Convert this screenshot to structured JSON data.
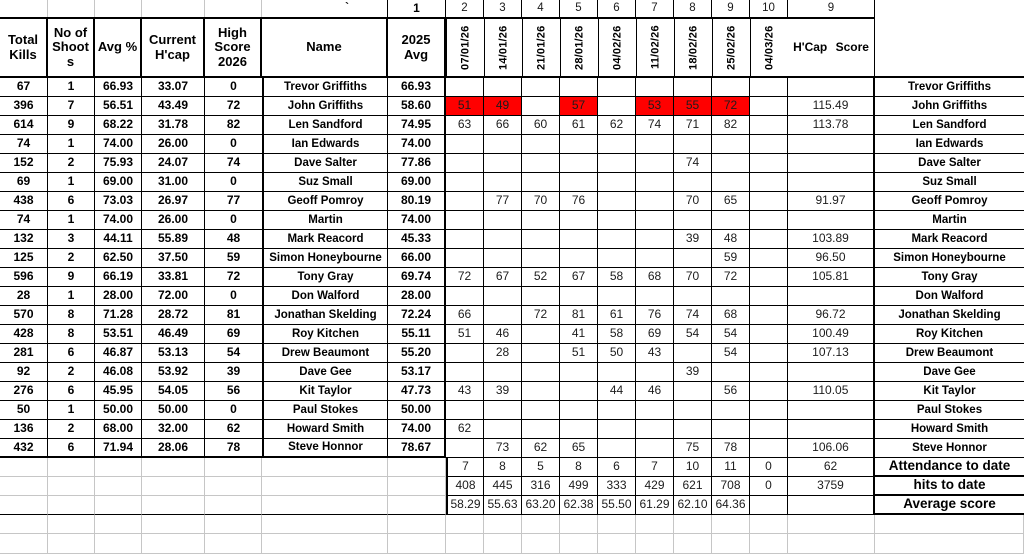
{
  "sheet": {
    "tick": "`",
    "number_row": {
      "avg2025": "1",
      "dates": [
        "2",
        "3",
        "4",
        "5",
        "6",
        "7",
        "8",
        "9",
        "10"
      ],
      "hcap": "9"
    },
    "headers": {
      "total_kills": "Total Kills",
      "no_of_shoots": "No of Shoots",
      "avg_pct": "Avg %",
      "current_hcap": "Current H'cap",
      "high_score": "High Score 2026",
      "name": "Name",
      "avg_2025": "2025 Avg",
      "hcap_score": "H'Cap Score"
    },
    "dates": [
      "07/01/26",
      "14/01/26",
      "21/01/26",
      "28/01/26",
      "04/02/26",
      "11/02/26",
      "18/02/26",
      "25/02/26",
      "04/03/26"
    ],
    "players": [
      {
        "kills": "67",
        "shoots": "1",
        "avg": "66.93",
        "hcap": "33.07",
        "high": "0",
        "name": "Trevor Griffiths",
        "avg2025": "66.93",
        "scores": [
          "",
          "",
          "",
          "",
          "",
          "",
          "",
          "",
          ""
        ],
        "red": [],
        "hcap_score": ""
      },
      {
        "kills": "396",
        "shoots": "7",
        "avg": "56.51",
        "hcap": "43.49",
        "high": "72",
        "name": "John Griffiths",
        "avg2025": "58.60",
        "scores": [
          "51",
          "49",
          "",
          "57",
          "",
          "53",
          "55",
          "72",
          ""
        ],
        "red": [
          0,
          1,
          3,
          5,
          6,
          7
        ],
        "hcap_score": "115.49"
      },
      {
        "kills": "614",
        "shoots": "9",
        "avg": "68.22",
        "hcap": "31.78",
        "high": "82",
        "name": "Len Sandford",
        "avg2025": "74.95",
        "scores": [
          "63",
          "66",
          "60",
          "61",
          "62",
          "74",
          "71",
          "82",
          ""
        ],
        "red": [],
        "hcap_score": "113.78"
      },
      {
        "kills": "74",
        "shoots": "1",
        "avg": "74.00",
        "hcap": "26.00",
        "high": "0",
        "name": "Ian Edwards",
        "avg2025": "74.00",
        "scores": [
          "",
          "",
          "",
          "",
          "",
          "",
          "",
          "",
          ""
        ],
        "red": [],
        "hcap_score": ""
      },
      {
        "kills": "152",
        "shoots": "2",
        "avg": "75.93",
        "hcap": "24.07",
        "high": "74",
        "name": "Dave Salter",
        "avg2025": "77.86",
        "scores": [
          "",
          "",
          "",
          "",
          "",
          "",
          "74",
          "",
          ""
        ],
        "red": [],
        "hcap_score": ""
      },
      {
        "kills": "69",
        "shoots": "1",
        "avg": "69.00",
        "hcap": "31.00",
        "high": "0",
        "name": "Suz Small",
        "avg2025": "69.00",
        "scores": [
          "",
          "",
          "",
          "",
          "",
          "",
          "",
          "",
          ""
        ],
        "red": [],
        "hcap_score": ""
      },
      {
        "kills": "438",
        "shoots": "6",
        "avg": "73.03",
        "hcap": "26.97",
        "high": "77",
        "name": "Geoff Pomroy",
        "avg2025": "80.19",
        "scores": [
          "",
          "77",
          "70",
          "76",
          "",
          "",
          "70",
          "65",
          ""
        ],
        "red": [],
        "hcap_score": "91.97"
      },
      {
        "kills": "74",
        "shoots": "1",
        "avg": "74.00",
        "hcap": "26.00",
        "high": "0",
        "name": "Martin",
        "avg2025": "74.00",
        "scores": [
          "",
          "",
          "",
          "",
          "",
          "",
          "",
          "",
          ""
        ],
        "red": [],
        "hcap_score": ""
      },
      {
        "kills": "132",
        "shoots": "3",
        "avg": "44.11",
        "hcap": "55.89",
        "high": "48",
        "name": "Mark Reacord",
        "avg2025": "45.33",
        "scores": [
          "",
          "",
          "",
          "",
          "",
          "",
          "39",
          "48",
          ""
        ],
        "red": [],
        "hcap_score": "103.89"
      },
      {
        "kills": "125",
        "shoots": "2",
        "avg": "62.50",
        "hcap": "37.50",
        "high": "59",
        "name": "Simon Honeybourne",
        "avg2025": "66.00",
        "scores": [
          "",
          "",
          "",
          "",
          "",
          "",
          "",
          "59",
          ""
        ],
        "red": [],
        "hcap_score": "96.50"
      },
      {
        "kills": "596",
        "shoots": "9",
        "avg": "66.19",
        "hcap": "33.81",
        "high": "72",
        "name": "Tony Gray",
        "avg2025": "69.74",
        "scores": [
          "72",
          "67",
          "52",
          "67",
          "58",
          "68",
          "70",
          "72",
          ""
        ],
        "red": [],
        "hcap_score": "105.81"
      },
      {
        "kills": "28",
        "shoots": "1",
        "avg": "28.00",
        "hcap": "72.00",
        "high": "0",
        "name": "Don Walford",
        "avg2025": "28.00",
        "scores": [
          "",
          "",
          "",
          "",
          "",
          "",
          "",
          "",
          ""
        ],
        "red": [],
        "hcap_score": ""
      },
      {
        "kills": "570",
        "shoots": "8",
        "avg": "71.28",
        "hcap": "28.72",
        "high": "81",
        "name": "Jonathan Skelding",
        "avg2025": "72.24",
        "scores": [
          "66",
          "",
          "72",
          "81",
          "61",
          "76",
          "74",
          "68",
          ""
        ],
        "red": [],
        "hcap_score": "96.72"
      },
      {
        "kills": "428",
        "shoots": "8",
        "avg": "53.51",
        "hcap": "46.49",
        "high": "69",
        "name": "Roy Kitchen",
        "avg2025": "55.11",
        "scores": [
          "51",
          "46",
          "",
          "41",
          "58",
          "69",
          "54",
          "54",
          ""
        ],
        "red": [],
        "hcap_score": "100.49"
      },
      {
        "kills": "281",
        "shoots": "6",
        "avg": "46.87",
        "hcap": "53.13",
        "high": "54",
        "name": "Drew Beaumont",
        "avg2025": "55.20",
        "scores": [
          "",
          "28",
          "",
          "51",
          "50",
          "43",
          "",
          "54",
          ""
        ],
        "red": [],
        "hcap_score": "107.13"
      },
      {
        "kills": "92",
        "shoots": "2",
        "avg": "46.08",
        "hcap": "53.92",
        "high": "39",
        "name": "Dave Gee",
        "avg2025": "53.17",
        "scores": [
          "",
          "",
          "",
          "",
          "",
          "",
          "39",
          "",
          ""
        ],
        "red": [],
        "hcap_score": ""
      },
      {
        "kills": "276",
        "shoots": "6",
        "avg": "45.95",
        "hcap": "54.05",
        "high": "56",
        "name": "Kit Taylor",
        "avg2025": "47.73",
        "scores": [
          "43",
          "39",
          "",
          "",
          "44",
          "46",
          "",
          "56",
          ""
        ],
        "red": [],
        "hcap_score": "110.05"
      },
      {
        "kills": "50",
        "shoots": "1",
        "avg": "50.00",
        "hcap": "50.00",
        "high": "0",
        "name": "Paul Stokes",
        "avg2025": "50.00",
        "scores": [
          "",
          "",
          "",
          "",
          "",
          "",
          "",
          "",
          ""
        ],
        "red": [],
        "hcap_score": ""
      },
      {
        "kills": "136",
        "shoots": "2",
        "avg": "68.00",
        "hcap": "32.00",
        "high": "62",
        "name": "Howard Smith",
        "avg2025": "74.00",
        "scores": [
          "62",
          "",
          "",
          "",
          "",
          "",
          "",
          "",
          ""
        ],
        "red": [],
        "hcap_score": ""
      },
      {
        "kills": "432",
        "shoots": "6",
        "avg": "71.94",
        "hcap": "28.06",
        "high": "78",
        "name": "Steve Honnor",
        "avg2025": "78.67",
        "scores": [
          "",
          "73",
          "62",
          "65",
          "",
          "",
          "75",
          "78",
          ""
        ],
        "red": [],
        "hcap_score": "106.06"
      }
    ],
    "summary": [
      {
        "label": "Attendance to date",
        "values": [
          "7",
          "8",
          "5",
          "8",
          "6",
          "7",
          "10",
          "11",
          "0"
        ],
        "total": "62"
      },
      {
        "label": "hits to date",
        "values": [
          "408",
          "445",
          "316",
          "499",
          "333",
          "429",
          "621",
          "708",
          "0"
        ],
        "total": "3759"
      },
      {
        "label": "Average score",
        "values": [
          "58.29",
          "55.63",
          "63.20",
          "62.38",
          "55.50",
          "61.29",
          "62.10",
          "64.36",
          ""
        ],
        "total": ""
      }
    ],
    "colors": {
      "highlight": "#ff0000",
      "grid_black": "#000000",
      "grid_faint": "#c6c6c6"
    }
  }
}
